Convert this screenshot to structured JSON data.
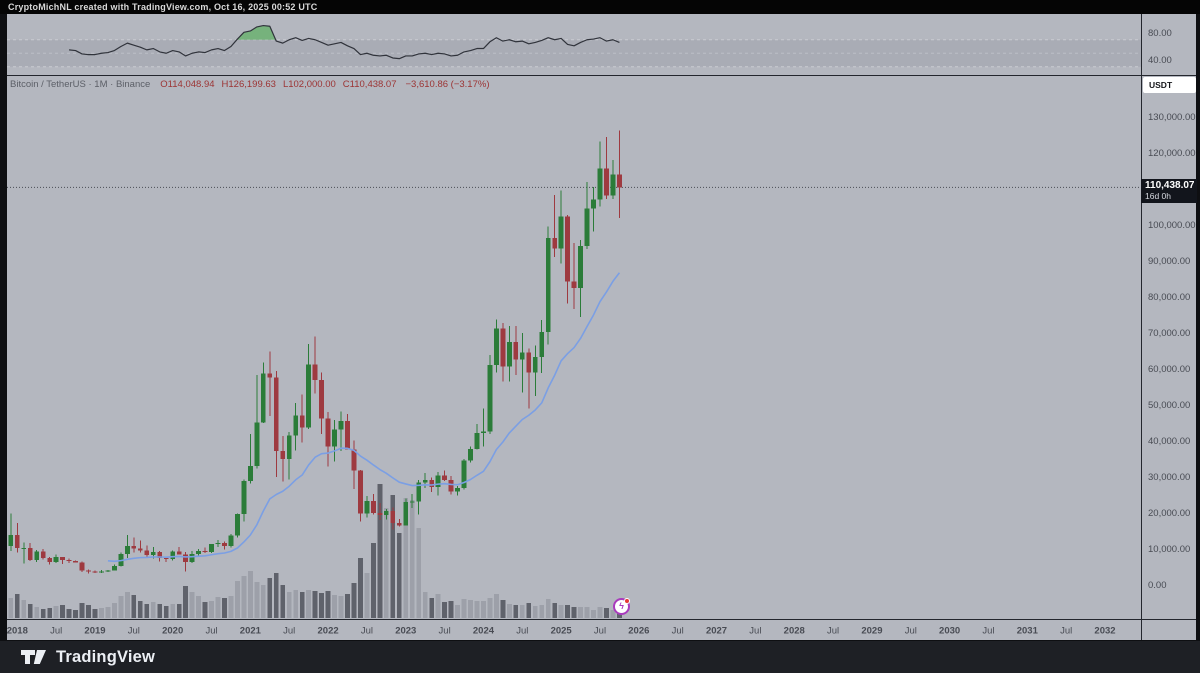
{
  "header": {
    "title": "CryptoMichNL created with TradingView.com, Oct 16, 2025 00:52 UTC"
  },
  "legend": {
    "title": "Bitcoin / TetherUS · 1M · Binance",
    "ohlc": [
      {
        "label": "O",
        "value": "114,048.94"
      },
      {
        "label": "H",
        "value": "126,199.63"
      },
      {
        "label": "L",
        "value": "102,000.00"
      },
      {
        "label": "C",
        "value": "110,438.07"
      }
    ],
    "change": "−3,610.86 (−3.17%)"
  },
  "price_scale": {
    "currency_button": "USDT",
    "last_price": "110,438.07",
    "countdown": "16d 0h",
    "labels": [
      {
        "text": "130,000.00",
        "value": 130000
      },
      {
        "text": "120,000.00",
        "value": 120000
      },
      {
        "text": "100,000.00",
        "value": 100000
      },
      {
        "text": "90,000.00",
        "value": 90000
      },
      {
        "text": "80,000.00",
        "value": 80000
      },
      {
        "text": "70,000.00",
        "value": 70000
      },
      {
        "text": "60,000.00",
        "value": 60000
      },
      {
        "text": "50,000.00",
        "value": 50000
      },
      {
        "text": "40,000.00",
        "value": 40000
      },
      {
        "text": "30,000.00",
        "value": 30000
      },
      {
        "text": "20,000.00",
        "value": 20000
      },
      {
        "text": "10,000.00",
        "value": 10000
      },
      {
        "text": "0.00",
        "value": 0
      }
    ],
    "rsi_labels": [
      {
        "text": "80.00",
        "value": 80
      },
      {
        "text": "40.00",
        "value": 40
      }
    ]
  },
  "time_axis": {
    "years": [
      2018,
      2019,
      2020,
      2021,
      2022,
      2023,
      2024,
      2025,
      2026,
      2027,
      2028,
      2029,
      2030,
      2031,
      2032
    ],
    "mid_label": "Jul"
  },
  "footer": {
    "brand": "TradingView"
  },
  "event_marker": {
    "glyph": "ϟ"
  },
  "chart_data": {
    "type": "candlestick",
    "symbol": "BTCUSDT",
    "interval": "1M",
    "exchange": "Binance",
    "last_price": 110438.07,
    "price_axis_range": [
      0,
      145000
    ],
    "rsi_band": [
      30,
      50,
      70
    ],
    "overlays": [
      {
        "name": "ema-21-month",
        "color": "#7b9fe4"
      }
    ],
    "colors": {
      "bg": "#b4b7bf",
      "band": "#a9acb5",
      "band_dash": "#c9cbd2",
      "band_dash_mid": "#bcbfc7",
      "up": "#2b7c39",
      "down": "#9e3a40",
      "vol_up": "#9da0a9",
      "vol_down": "#5f626b",
      "ema": "#7b9fe4",
      "rsi_line": "#30333b",
      "rsi_fill": "#4caf50",
      "axis_text": "#484b53",
      "price_line": "#4a4d55",
      "separator": "#23262d"
    },
    "columns": [
      "month",
      "open",
      "high",
      "low",
      "close",
      "volume_rel"
    ],
    "candles": [
      [
        "2017-12",
        10770,
        19799,
        9380,
        13880,
        20
      ],
      [
        "2018-01",
        13880,
        17176,
        9035,
        10285,
        24
      ],
      [
        "2018-02",
        10285,
        11786,
        6000,
        10325,
        18
      ],
      [
        "2018-03",
        10325,
        11710,
        6600,
        6926,
        14
      ],
      [
        "2018-04",
        6926,
        9759,
        6430,
        9240,
        11
      ],
      [
        "2018-05",
        9240,
        9996,
        7032,
        7485,
        9
      ],
      [
        "2018-06",
        7485,
        7786,
        5750,
        6390,
        10
      ],
      [
        "2018-07",
        6390,
        8491,
        6070,
        7730,
        12
      ],
      [
        "2018-08",
        7730,
        7760,
        5880,
        7011,
        13
      ],
      [
        "2018-09",
        7011,
        7410,
        6111,
        6626,
        9
      ],
      [
        "2018-10",
        6626,
        6760,
        6190,
        6317,
        8
      ],
      [
        "2018-11",
        6317,
        6542,
        3652,
        4017,
        15
      ],
      [
        "2018-12",
        4017,
        4312,
        3156,
        3693,
        13
      ],
      [
        "2019-01",
        3693,
        4069,
        3349,
        3437,
        9
      ],
      [
        "2019-02",
        3437,
        4190,
        3373,
        3814,
        10
      ],
      [
        "2019-03",
        3814,
        4140,
        3670,
        4093,
        11
      ],
      [
        "2019-04",
        4093,
        5627,
        4052,
        5269,
        15
      ],
      [
        "2019-05",
        5269,
        9074,
        5205,
        8555,
        22
      ],
      [
        "2019-06",
        8555,
        13880,
        7432,
        10854,
        26
      ],
      [
        "2019-07",
        10854,
        13200,
        9049,
        10080,
        23
      ],
      [
        "2019-08",
        10080,
        12325,
        9071,
        9594,
        17
      ],
      [
        "2019-09",
        9594,
        10949,
        7700,
        8285,
        14
      ],
      [
        "2019-10",
        8285,
        10540,
        7293,
        9140,
        16
      ],
      [
        "2019-11",
        9140,
        9505,
        6515,
        7542,
        14
      ],
      [
        "2019-12",
        7542,
        7790,
        6435,
        7189,
        12
      ],
      [
        "2020-01",
        7189,
        9578,
        6853,
        9352,
        14
      ],
      [
        "2020-02",
        9352,
        10500,
        8407,
        8525,
        14
      ],
      [
        "2020-03",
        8525,
        9188,
        3782,
        6410,
        32
      ],
      [
        "2020-04",
        6410,
        9460,
        6140,
        8620,
        26
      ],
      [
        "2020-05",
        8620,
        10067,
        8101,
        9446,
        22
      ],
      [
        "2020-06",
        9446,
        10380,
        8833,
        9136,
        16
      ],
      [
        "2020-07",
        9136,
        11444,
        8893,
        11333,
        17
      ],
      [
        "2020-08",
        11333,
        12468,
        10518,
        11649,
        21
      ],
      [
        "2020-09",
        11649,
        12050,
        9825,
        10776,
        20
      ],
      [
        "2020-10",
        10776,
        14100,
        10371,
        13791,
        22
      ],
      [
        "2020-11",
        13791,
        19863,
        13195,
        19695,
        37
      ],
      [
        "2020-12",
        19695,
        29300,
        17572,
        28923,
        42
      ],
      [
        "2021-01",
        28923,
        41950,
        28130,
        33092,
        47
      ],
      [
        "2021-02",
        33092,
        58352,
        32296,
        45135,
        36
      ],
      [
        "2021-03",
        45135,
        61844,
        44950,
        58740,
        33
      ],
      [
        "2021-04",
        58740,
        64854,
        46930,
        57694,
        40
      ],
      [
        "2021-05",
        57694,
        59500,
        30000,
        37253,
        45
      ],
      [
        "2021-06",
        37253,
        41330,
        28805,
        35040,
        33
      ],
      [
        "2021-07",
        35040,
        42448,
        29278,
        41461,
        26
      ],
      [
        "2021-08",
        41461,
        50500,
        37332,
        47100,
        28
      ],
      [
        "2021-09",
        47100,
        52920,
        39600,
        43790,
        26
      ],
      [
        "2021-10",
        43790,
        67000,
        43283,
        61318,
        28
      ],
      [
        "2021-11",
        61318,
        69000,
        53256,
        56950,
        27
      ],
      [
        "2021-12",
        56950,
        59053,
        42000,
        46216,
        25
      ],
      [
        "2022-01",
        46216,
        47990,
        32917,
        38466,
        27
      ],
      [
        "2022-02",
        38466,
        45821,
        34322,
        43160,
        23
      ],
      [
        "2022-03",
        43160,
        48189,
        37155,
        45510,
        22
      ],
      [
        "2022-04",
        45510,
        47448,
        37585,
        37630,
        24
      ],
      [
        "2022-05",
        37630,
        40071,
        26700,
        31792,
        35
      ],
      [
        "2022-06",
        31792,
        31957,
        17622,
        19924,
        60
      ],
      [
        "2022-07",
        19924,
        24668,
        18781,
        23293,
        45
      ],
      [
        "2022-08",
        23293,
        25211,
        19520,
        20048,
        75
      ],
      [
        "2022-09",
        20048,
        22799,
        18125,
        19423,
        134
      ],
      [
        "2022-10",
        19423,
        21085,
        18190,
        20490,
        110
      ],
      [
        "2022-11",
        20490,
        21480,
        15476,
        17163,
        123
      ],
      [
        "2022-12",
        17163,
        18385,
        16256,
        16540,
        85
      ],
      [
        "2023-01",
        16540,
        23960,
        16499,
        23125,
        120
      ],
      [
        "2023-02",
        23125,
        25250,
        21351,
        23130,
        118
      ],
      [
        "2023-03",
        23130,
        29184,
        19549,
        28465,
        90
      ],
      [
        "2023-04",
        28465,
        31059,
        26942,
        29233,
        26
      ],
      [
        "2023-05",
        29233,
        29820,
        25811,
        27210,
        20
      ],
      [
        "2023-06",
        27210,
        31431,
        24797,
        30472,
        24
      ],
      [
        "2023-07",
        30472,
        31862,
        28855,
        29230,
        16
      ],
      [
        "2023-08",
        29230,
        30242,
        25166,
        25932,
        17
      ],
      [
        "2023-09",
        25932,
        27483,
        24901,
        26962,
        13
      ],
      [
        "2023-10",
        26962,
        35000,
        26538,
        34650,
        19
      ],
      [
        "2023-11",
        34650,
        38450,
        34065,
        37710,
        18
      ],
      [
        "2023-12",
        37710,
        44700,
        37615,
        42280,
        17
      ],
      [
        "2024-01",
        42280,
        48969,
        38501,
        42580,
        17
      ],
      [
        "2024-02",
        42580,
        63933,
        41884,
        61130,
        20
      ],
      [
        "2024-03",
        61130,
        73777,
        59005,
        71280,
        24
      ],
      [
        "2024-04",
        71280,
        72797,
        56500,
        60630,
        18
      ],
      [
        "2024-05",
        60630,
        71979,
        56552,
        67520,
        14
      ],
      [
        "2024-06",
        67520,
        71997,
        58402,
        62670,
        13
      ],
      [
        "2024-07",
        62670,
        69987,
        53485,
        64620,
        13
      ],
      [
        "2024-08",
        64620,
        65659,
        49000,
        58970,
        15
      ],
      [
        "2024-09",
        58970,
        66500,
        52530,
        63330,
        12
      ],
      [
        "2024-10",
        63330,
        73620,
        58872,
        70210,
        13
      ],
      [
        "2024-11",
        70210,
        99588,
        66835,
        96440,
        19
      ],
      [
        "2024-12",
        96440,
        108353,
        91150,
        93430,
        15
      ],
      [
        "2025-01",
        93430,
        109588,
        89256,
        102405,
        13
      ],
      [
        "2025-02",
        102405,
        102800,
        78258,
        84350,
        13
      ],
      [
        "2025-03",
        84350,
        95000,
        76606,
        82550,
        11
      ],
      [
        "2025-04",
        82550,
        95768,
        74508,
        94210,
        11
      ],
      [
        "2025-05",
        94210,
        112000,
        93366,
        104600,
        11
      ],
      [
        "2025-06",
        104600,
        110530,
        98240,
        107130,
        8
      ],
      [
        "2025-07",
        107130,
        123218,
        105111,
        115760,
        11
      ],
      [
        "2025-08",
        115760,
        124474,
        107270,
        108230,
        10
      ],
      [
        "2025-09",
        108230,
        118000,
        107255,
        114048.94,
        8
      ],
      [
        "2025-10",
        114048.94,
        126199.63,
        102000.0,
        110438.07,
        7
      ]
    ],
    "rsi": {
      "period": 14,
      "start_index": 9,
      "values": [
        55,
        54,
        49,
        48,
        48,
        50,
        51,
        54,
        60,
        65,
        62,
        59,
        55,
        57,
        52,
        50,
        54,
        52,
        46,
        50,
        52,
        51,
        55,
        57,
        54,
        60,
        71,
        81,
        83,
        89,
        91,
        90,
        68,
        65,
        70,
        73,
        69,
        72,
        70,
        66,
        62,
        64,
        66,
        61,
        57,
        48,
        50,
        47,
        46,
        47,
        43,
        42,
        46,
        46,
        49,
        50,
        48,
        50,
        49,
        46,
        47,
        52,
        54,
        57,
        57,
        67,
        73,
        68,
        70,
        67,
        68,
        64,
        66,
        69,
        73,
        70,
        72,
        63,
        61,
        66,
        70,
        71,
        73,
        68,
        70,
        66
      ]
    }
  }
}
